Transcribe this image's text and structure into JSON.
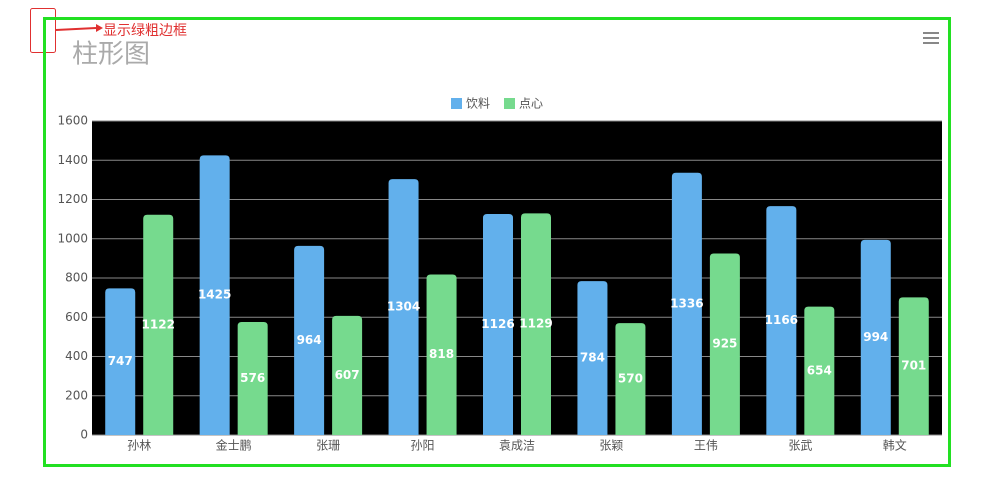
{
  "chart_data": {
    "type": "bar",
    "title": "柱形图",
    "annotation": "显示绿粗边框",
    "categories": [
      "孙林",
      "金士鹏",
      "张珊",
      "孙阳",
      "袁成洁",
      "张颖",
      "王伟",
      "张武",
      "韩文"
    ],
    "series": [
      {
        "name": "饮料",
        "color": "#62b0ec",
        "values": [
          747,
          1425,
          964,
          1304,
          1126,
          784,
          1336,
          1166,
          994
        ]
      },
      {
        "name": "点心",
        "color": "#76da8e",
        "values": [
          1122,
          576,
          607,
          818,
          1129,
          570,
          925,
          654,
          701
        ]
      }
    ],
    "ylim": [
      0,
      1600
    ],
    "yticks": [
      0,
      200,
      400,
      600,
      800,
      1000,
      1200,
      1400,
      1600
    ],
    "grid": true,
    "legend": "top",
    "plot_background": "#000000",
    "border_color": "#22e022"
  }
}
